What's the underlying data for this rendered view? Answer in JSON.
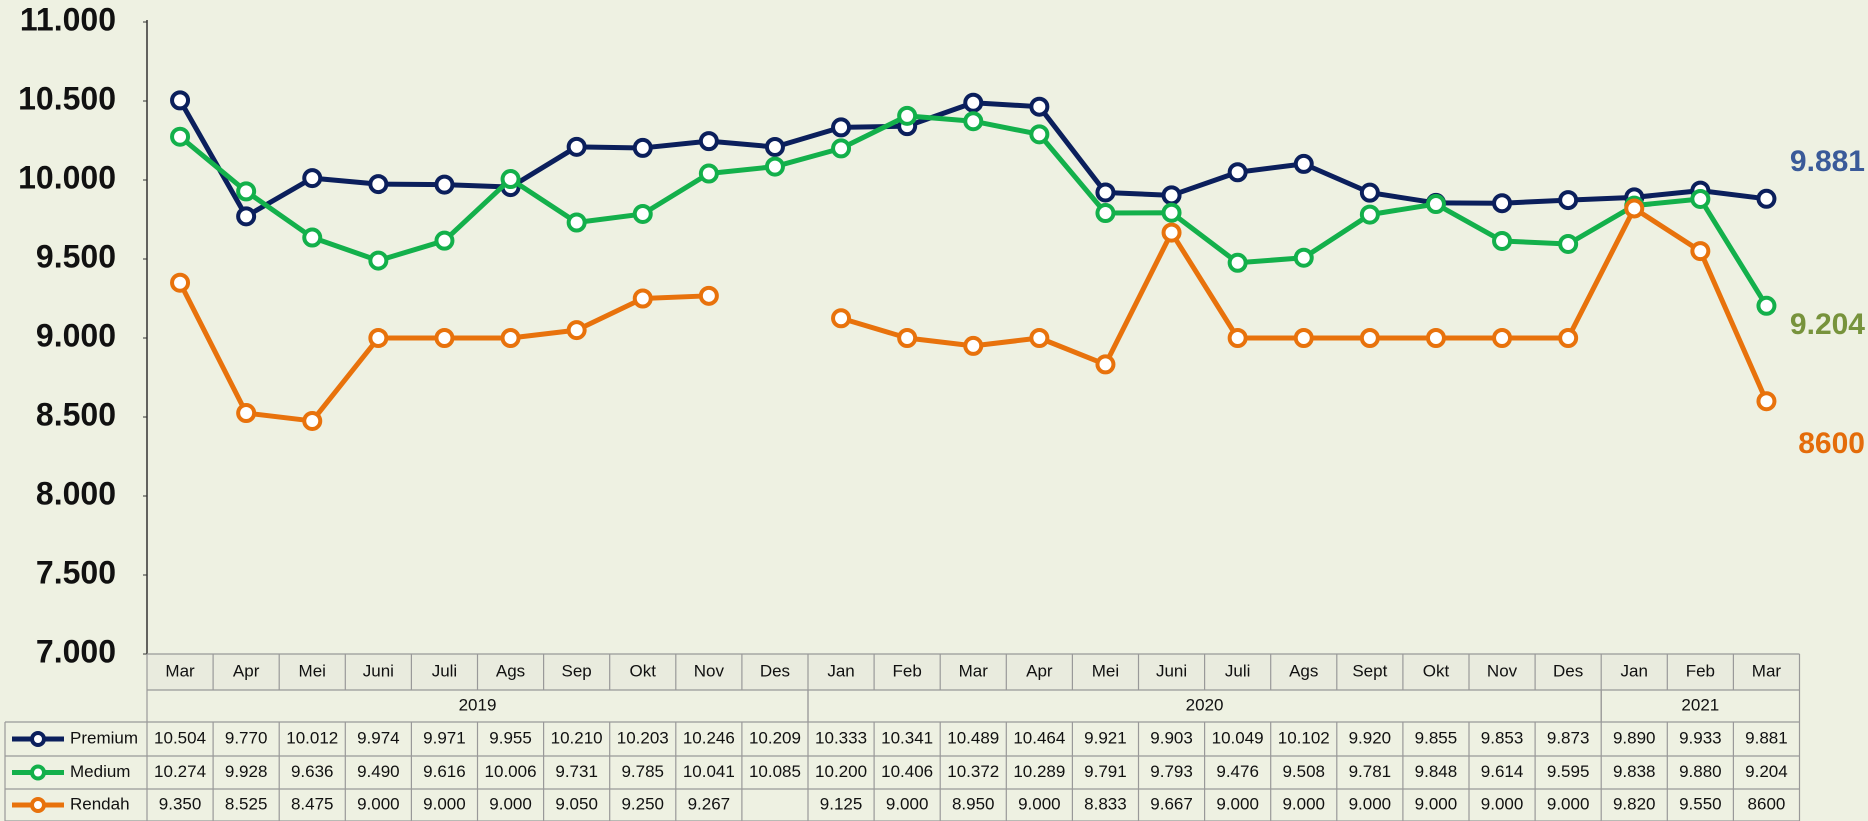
{
  "chart_data": {
    "type": "line",
    "categories": [
      "Mar",
      "Apr",
      "Mei",
      "Juni",
      "Juli",
      "Ags",
      "Sep",
      "Okt",
      "Nov",
      "Des",
      "Jan",
      "Feb",
      "Mar",
      "Apr",
      "Mei",
      "Juni",
      "Juli",
      "Ags",
      "Sept",
      "Okt",
      "Nov",
      "Des",
      "Jan",
      "Feb",
      "Mar"
    ],
    "year_groups": [
      {
        "label": "2019",
        "count": 10
      },
      {
        "label": "2020",
        "count": 12
      },
      {
        "label": "2021",
        "count": 3
      }
    ],
    "ylim": [
      7000,
      11000
    ],
    "yticks": [
      {
        "value": 7000,
        "label": "7.000"
      },
      {
        "value": 7500,
        "label": "7.500"
      },
      {
        "value": 8000,
        "label": "8.000"
      },
      {
        "value": 8500,
        "label": "8.500"
      },
      {
        "value": 9000,
        "label": "9.000"
      },
      {
        "value": 9500,
        "label": "9.500"
      },
      {
        "value": 10000,
        "label": "10.000"
      },
      {
        "value": 10500,
        "label": "10.500"
      },
      {
        "value": 11000,
        "label": "11.000"
      }
    ],
    "series": [
      {
        "name": "Premium",
        "color": "#0b1f5c",
        "end_label_color": "#3a5a99",
        "values": [
          10504,
          9770,
          10012,
          9974,
          9971,
          9955,
          10210,
          10203,
          10246,
          10209,
          10333,
          10341,
          10489,
          10464,
          9921,
          9903,
          10049,
          10102,
          9920,
          9855,
          9853,
          9873,
          9890,
          9933,
          9881
        ],
        "value_labels": [
          "10.504",
          "9.770",
          "10.012",
          "9.974",
          "9.971",
          "9.955",
          "10.210",
          "10.203",
          "10.246",
          "10.209",
          "10.333",
          "10.341",
          "10.489",
          "10.464",
          "9.921",
          "9.903",
          "10.049",
          "10.102",
          "9.920",
          "9.855",
          "9.853",
          "9.873",
          "9.890",
          "9.933",
          "9.881"
        ]
      },
      {
        "name": "Medium",
        "color": "#13b04b",
        "end_label_color": "#77933c",
        "values": [
          10274,
          9928,
          9636,
          9490,
          9616,
          10006,
          9731,
          9785,
          10041,
          10085,
          10200,
          10406,
          10372,
          10289,
          9791,
          9793,
          9476,
          9508,
          9781,
          9848,
          9614,
          9595,
          9838,
          9880,
          9204
        ],
        "value_labels": [
          "10.274",
          "9.928",
          "9.636",
          "9.490",
          "9.616",
          "10.006",
          "9.731",
          "9.785",
          "10.041",
          "10.085",
          "10.200",
          "10.406",
          "10.372",
          "10.289",
          "9.791",
          "9.793",
          "9.476",
          "9.508",
          "9.781",
          "9.848",
          "9.614",
          "9.595",
          "9.838",
          "9.880",
          "9.204"
        ]
      },
      {
        "name": "Rendah",
        "color": "#e8720c",
        "end_label_color": "#e46c0a",
        "values": [
          9350,
          8525,
          8475,
          9000,
          9000,
          9000,
          9050,
          9250,
          9267,
          null,
          9125,
          9000,
          8950,
          9000,
          8833,
          9667,
          9000,
          9000,
          9000,
          9000,
          9000,
          9000,
          9820,
          9550,
          8600
        ],
        "value_labels": [
          "9.350",
          "8.525",
          "8.475",
          "9.000",
          "9.000",
          "9.000",
          "9.050",
          "9.250",
          "9.267",
          null,
          "9.125",
          "9.000",
          "8.950",
          "9.000",
          "8.833",
          "9.667",
          "9.000",
          "9.000",
          "9.000",
          "9.000",
          "9.000",
          "9.000",
          "9.820",
          "9.550",
          "8600"
        ]
      }
    ]
  }
}
